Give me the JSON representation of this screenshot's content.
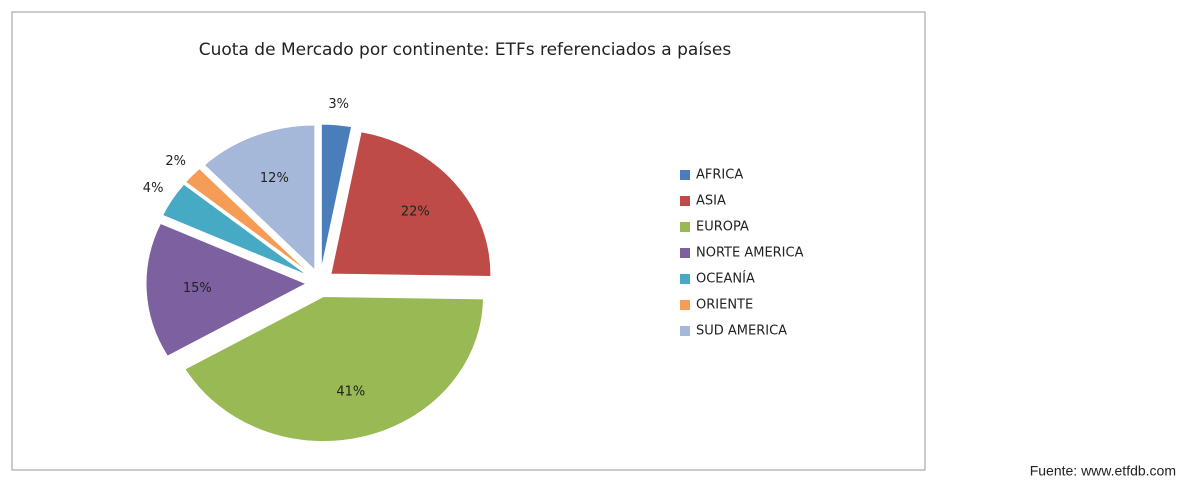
{
  "chart_data": {
    "type": "pie",
    "title": "Cuota de Mercado por continente: ETFs referenciados a países",
    "categories": [
      "AFRICA",
      "ASIA",
      "EUROPA",
      "NORTE AMERICA",
      "OCEANÍA",
      "ORIENTE",
      "SUD AMERICA"
    ],
    "values": [
      3,
      22,
      41,
      15,
      4,
      2,
      12
    ],
    "value_labels": [
      "3%",
      "22%",
      "41%",
      "15%",
      "4%",
      "2%",
      "12%"
    ],
    "colors": [
      "#4a7ebb",
      "#be4b48",
      "#98b954",
      "#7d60a0",
      "#46aac5",
      "#f59d56",
      "#a5b8d9"
    ],
    "legend": "right",
    "source": "Fuente: www.etfdb.com"
  }
}
